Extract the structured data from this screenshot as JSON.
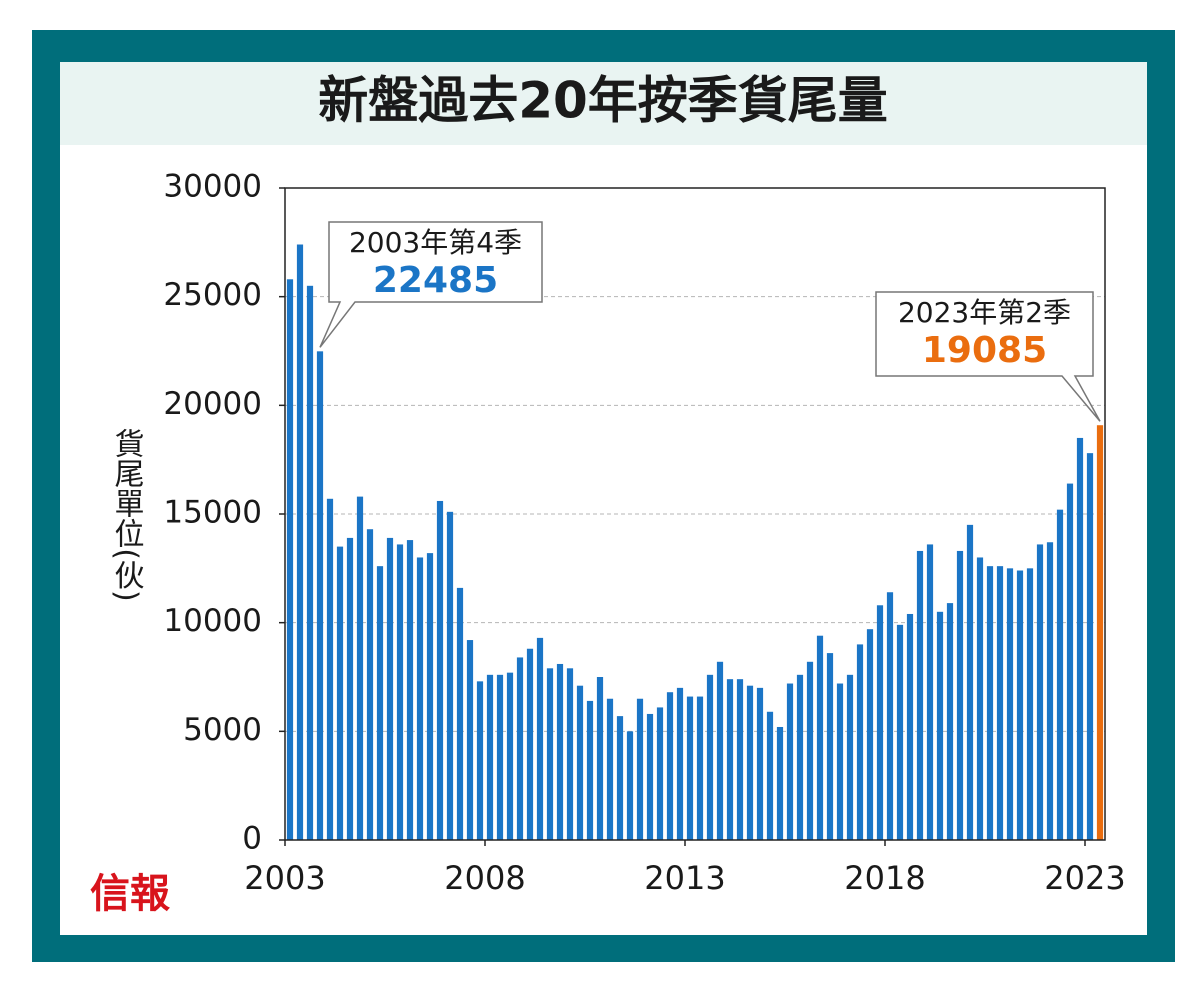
{
  "source": "信報",
  "chart_data": {
    "type": "bar",
    "title": "新盤過去20年按季貨尾量",
    "y_label": "貨尾單位(伙)",
    "x": [
      2003,
      2003.25,
      2003.5,
      2003.75,
      2004,
      2004.25,
      2004.5,
      2004.75,
      2005,
      2005.25,
      2005.5,
      2005.75,
      2006,
      2006.25,
      2006.5,
      2006.75,
      2007,
      2007.25,
      2007.5,
      2007.75,
      2008,
      2008.25,
      2008.5,
      2008.75,
      2009,
      2009.25,
      2009.5,
      2009.75,
      2010,
      2010.25,
      2010.5,
      2010.75,
      2011,
      2011.25,
      2011.5,
      2011.75,
      2012,
      2012.25,
      2012.5,
      2012.75,
      2013,
      2013.25,
      2013.5,
      2013.75,
      2014,
      2014.25,
      2014.5,
      2014.75,
      2015,
      2015.25,
      2015.5,
      2015.75,
      2016,
      2016.25,
      2016.5,
      2016.75,
      2017,
      2017.25,
      2017.5,
      2017.75,
      2018,
      2018.25,
      2018.5,
      2018.75,
      2019,
      2019.25,
      2019.5,
      2019.75,
      2020,
      2020.25,
      2020.5,
      2020.75,
      2021,
      2021.25,
      2021.5,
      2021.75,
      2022,
      2022.25,
      2022.5,
      2022.75,
      2023,
      2023.25
    ],
    "values": [
      25800,
      27400,
      25500,
      22485,
      15700,
      13500,
      13900,
      15800,
      14300,
      12600,
      13900,
      13600,
      13800,
      13000,
      13200,
      15600,
      15100,
      11600,
      9200,
      7300,
      7600,
      7600,
      7700,
      8400,
      8800,
      9300,
      7900,
      8100,
      7900,
      7100,
      6400,
      7500,
      6500,
      5700,
      5000,
      6500,
      5800,
      6100,
      6800,
      7000,
      6600,
      6600,
      7600,
      8200,
      7400,
      7400,
      7100,
      7000,
      5900,
      5200,
      7200,
      7600,
      8200,
      9400,
      8600,
      7200,
      7600,
      9000,
      9700,
      10800,
      11400,
      9900,
      10400,
      13300,
      13600,
      10500,
      10900,
      13300,
      14500,
      13000,
      12600,
      12600,
      12500,
      12400,
      12500,
      13600,
      13700,
      15200,
      16400,
      18500,
      17800,
      19085
    ],
    "color": "#1b75c6",
    "highlight_color": "#ea6d0f",
    "annotations": [
      "2003年第4季",
      "2023年第2季"
    ],
    "xlim": [
      2003,
      2023.5
    ],
    "xticks": [
      2003,
      2008,
      2013,
      2018,
      2023
    ],
    "ylim": [
      0,
      30000
    ],
    "yticks": [
      0,
      5000,
      10000,
      15000,
      20000,
      25000,
      30000
    ],
    "grid": true
  }
}
